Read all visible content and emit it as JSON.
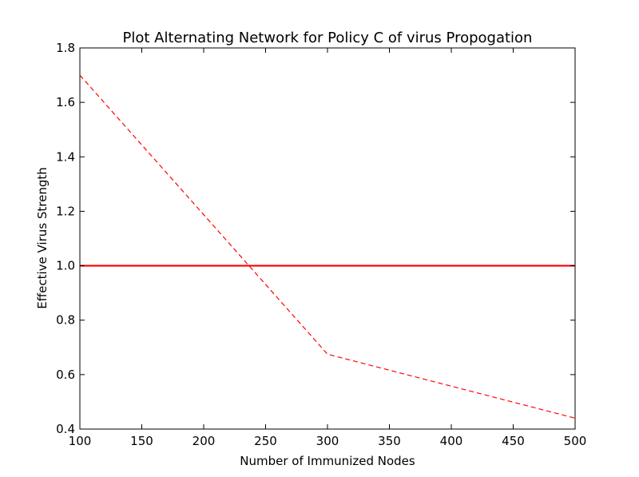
{
  "chart_data": {
    "type": "line",
    "title": "Plot Alternating Network for Policy C of virus Propogation",
    "xlabel": "Number of Immunized Nodes",
    "ylabel": "Effective Virus Strength",
    "xlim": [
      100,
      500
    ],
    "ylim": [
      0.4,
      1.8
    ],
    "x_ticks": [
      100,
      150,
      200,
      250,
      300,
      350,
      400,
      450,
      500
    ],
    "y_ticks": [
      0.4,
      0.6,
      0.8,
      1.0,
      1.2,
      1.4,
      1.6,
      1.8
    ],
    "x_tick_labels": [
      "100",
      "150",
      "200",
      "250",
      "300",
      "350",
      "400",
      "450",
      "500"
    ],
    "y_tick_labels": [
      "0.4",
      "0.6",
      "0.8",
      "1.0",
      "1.2",
      "1.4",
      "1.6",
      "1.8"
    ],
    "grid": false,
    "series": [
      {
        "style": "dashed",
        "color": "#ff0000",
        "x": [
          100,
          300,
          500
        ],
        "y": [
          1.7,
          0.675,
          0.44
        ]
      },
      {
        "style": "solid",
        "color": "#ff0000",
        "x": [
          100,
          500
        ],
        "y": [
          1.0,
          1.0
        ]
      }
    ]
  }
}
